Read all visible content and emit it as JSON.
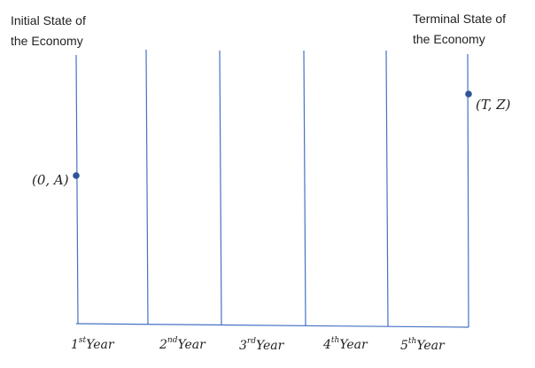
{
  "headers": {
    "initial": "Initial State of\nthe Economy",
    "terminal": "Terminal State of\nthe Economy"
  },
  "points": {
    "start": "(0, A)",
    "end": "(T, Z)"
  },
  "years": [
    {
      "num": "1",
      "sup": "st",
      "word": "Year"
    },
    {
      "num": "2",
      "sup": "nd",
      "word": "Year"
    },
    {
      "num": "3",
      "sup": "rd",
      "word": "Year"
    },
    {
      "num": "4",
      "sup": "th",
      "word": "Year"
    },
    {
      "num": "5",
      "sup": "th",
      "word": "Year"
    }
  ],
  "colors": {
    "line": "#4472c4",
    "point": "#2f5597",
    "text": "#222222"
  }
}
